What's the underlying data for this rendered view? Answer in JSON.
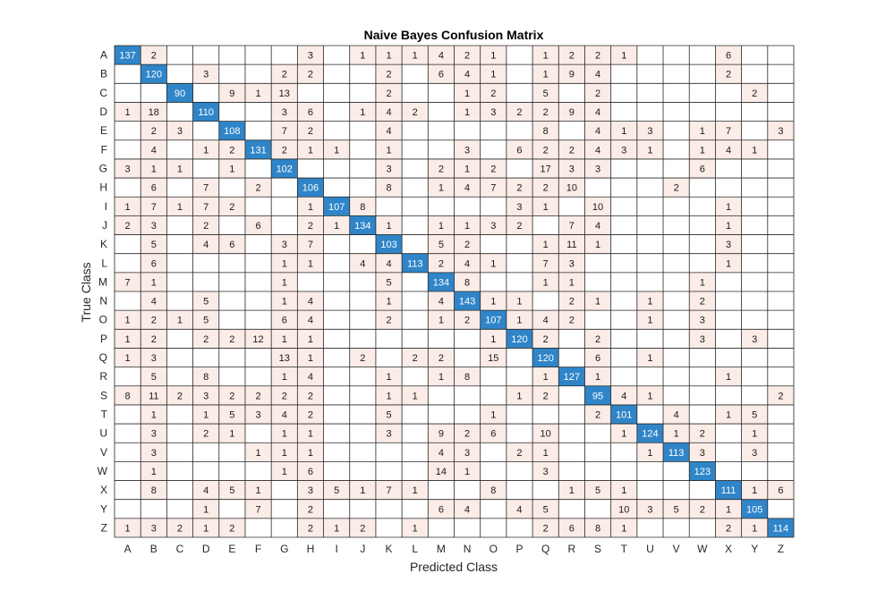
{
  "chart_data": {
    "type": "heatmap",
    "title": "Naive Bayes Confusion Matrix",
    "xlabel": "Predicted Class",
    "ylabel": "True Class",
    "classes": [
      "A",
      "B",
      "C",
      "D",
      "E",
      "F",
      "G",
      "H",
      "I",
      "J",
      "K",
      "L",
      "M",
      "N",
      "O",
      "P",
      "Q",
      "R",
      "S",
      "T",
      "U",
      "V",
      "W",
      "X",
      "Y",
      "Z"
    ],
    "colors": {
      "diagonal": "#2f85c8",
      "diagonal_text": "#ffffff",
      "off_diagonal": "#fbece7",
      "text": "#1a1a1a",
      "grid": "#262626"
    },
    "matrix": [
      [
        137,
        2,
        0,
        0,
        0,
        0,
        0,
        3,
        0,
        1,
        1,
        1,
        4,
        2,
        1,
        0,
        1,
        2,
        2,
        1,
        0,
        0,
        0,
        6,
        0,
        0
      ],
      [
        0,
        120,
        0,
        3,
        0,
        0,
        2,
        2,
        0,
        0,
        2,
        0,
        6,
        4,
        1,
        0,
        1,
        9,
        4,
        0,
        0,
        0,
        0,
        2,
        0,
        0
      ],
      [
        0,
        0,
        90,
        0,
        9,
        1,
        13,
        0,
        0,
        0,
        2,
        0,
        0,
        1,
        2,
        0,
        5,
        0,
        2,
        0,
        0,
        0,
        0,
        0,
        2,
        0
      ],
      [
        1,
        18,
        0,
        110,
        0,
        0,
        3,
        6,
        0,
        1,
        4,
        2,
        0,
        1,
        3,
        2,
        2,
        9,
        4,
        0,
        0,
        0,
        0,
        0,
        0,
        0
      ],
      [
        0,
        2,
        3,
        0,
        108,
        0,
        7,
        2,
        0,
        0,
        4,
        0,
        0,
        0,
        0,
        0,
        8,
        0,
        4,
        1,
        3,
        0,
        1,
        7,
        0,
        3
      ],
      [
        0,
        4,
        0,
        1,
        2,
        131,
        2,
        1,
        1,
        0,
        1,
        0,
        0,
        3,
        0,
        6,
        2,
        2,
        4,
        3,
        1,
        0,
        1,
        4,
        1,
        0
      ],
      [
        3,
        1,
        1,
        0,
        1,
        0,
        102,
        0,
        0,
        0,
        3,
        0,
        2,
        1,
        2,
        0,
        17,
        3,
        3,
        0,
        0,
        0,
        6,
        0,
        0,
        0
      ],
      [
        0,
        6,
        0,
        7,
        0,
        2,
        0,
        106,
        0,
        0,
        8,
        0,
        1,
        4,
        7,
        2,
        2,
        10,
        0,
        0,
        0,
        2,
        0,
        0,
        0,
        0
      ],
      [
        1,
        7,
        1,
        7,
        2,
        0,
        0,
        1,
        107,
        8,
        0,
        0,
        0,
        0,
        0,
        3,
        1,
        0,
        10,
        0,
        0,
        0,
        0,
        1,
        0,
        0
      ],
      [
        2,
        3,
        0,
        2,
        0,
        6,
        0,
        2,
        1,
        134,
        1,
        0,
        1,
        1,
        3,
        2,
        0,
        7,
        4,
        0,
        0,
        0,
        0,
        1,
        0,
        0
      ],
      [
        0,
        5,
        0,
        4,
        6,
        0,
        3,
        7,
        0,
        0,
        103,
        0,
        5,
        2,
        0,
        0,
        1,
        11,
        1,
        0,
        0,
        0,
        0,
        3,
        0,
        0
      ],
      [
        0,
        6,
        0,
        0,
        0,
        0,
        1,
        1,
        0,
        4,
        4,
        113,
        2,
        4,
        1,
        0,
        7,
        3,
        0,
        0,
        0,
        0,
        0,
        1,
        0,
        0
      ],
      [
        7,
        1,
        0,
        0,
        0,
        0,
        1,
        0,
        0,
        0,
        5,
        0,
        134,
        8,
        0,
        0,
        1,
        1,
        0,
        0,
        0,
        0,
        1,
        0,
        0,
        0
      ],
      [
        0,
        4,
        0,
        5,
        0,
        0,
        1,
        4,
        0,
        0,
        1,
        0,
        4,
        143,
        1,
        1,
        0,
        2,
        1,
        0,
        1,
        0,
        2,
        0,
        0,
        0
      ],
      [
        1,
        2,
        1,
        5,
        0,
        0,
        6,
        4,
        0,
        0,
        2,
        0,
        1,
        2,
        107,
        1,
        4,
        2,
        0,
        0,
        1,
        0,
        3,
        0,
        0,
        0
      ],
      [
        1,
        2,
        0,
        2,
        2,
        12,
        1,
        1,
        0,
        0,
        0,
        0,
        0,
        0,
        1,
        120,
        2,
        0,
        2,
        0,
        0,
        0,
        3,
        0,
        3,
        0
      ],
      [
        1,
        3,
        0,
        0,
        0,
        0,
        13,
        1,
        0,
        2,
        0,
        2,
        2,
        0,
        15,
        0,
        120,
        0,
        6,
        0,
        1,
        0,
        0,
        0,
        0,
        0
      ],
      [
        0,
        5,
        0,
        8,
        0,
        0,
        1,
        4,
        0,
        0,
        1,
        0,
        1,
        8,
        0,
        0,
        1,
        127,
        1,
        0,
        0,
        0,
        0,
        1,
        0,
        0
      ],
      [
        8,
        11,
        2,
        3,
        2,
        2,
        2,
        2,
        0,
        0,
        1,
        1,
        0,
        0,
        0,
        1,
        2,
        0,
        95,
        4,
        1,
        0,
        0,
        0,
        0,
        2
      ],
      [
        0,
        1,
        0,
        1,
        5,
        3,
        4,
        2,
        0,
        0,
        5,
        0,
        0,
        0,
        1,
        0,
        0,
        0,
        2,
        101,
        0,
        4,
        0,
        1,
        5,
        0
      ],
      [
        0,
        3,
        0,
        2,
        1,
        0,
        1,
        1,
        0,
        0,
        3,
        0,
        9,
        2,
        6,
        0,
        10,
        0,
        0,
        1,
        124,
        1,
        2,
        0,
        1,
        0
      ],
      [
        0,
        3,
        0,
        0,
        0,
        1,
        1,
        1,
        0,
        0,
        0,
        0,
        4,
        3,
        0,
        2,
        1,
        0,
        0,
        0,
        1,
        113,
        3,
        0,
        3,
        0
      ],
      [
        0,
        1,
        0,
        0,
        0,
        0,
        1,
        6,
        0,
        0,
        0,
        0,
        14,
        1,
        0,
        0,
        3,
        0,
        0,
        0,
        0,
        0,
        123,
        0,
        0,
        0
      ],
      [
        0,
        8,
        0,
        4,
        5,
        1,
        0,
        3,
        5,
        1,
        7,
        1,
        0,
        0,
        8,
        0,
        0,
        1,
        5,
        1,
        0,
        0,
        0,
        111,
        1,
        6
      ],
      [
        0,
        0,
        0,
        1,
        0,
        7,
        0,
        2,
        0,
        0,
        0,
        0,
        6,
        4,
        0,
        4,
        5,
        0,
        0,
        10,
        3,
        5,
        2,
        1,
        105,
        0
      ],
      [
        1,
        3,
        2,
        1,
        2,
        0,
        0,
        2,
        1,
        2,
        0,
        1,
        0,
        0,
        0,
        0,
        2,
        6,
        8,
        1,
        0,
        0,
        0,
        2,
        1,
        114
      ]
    ]
  }
}
